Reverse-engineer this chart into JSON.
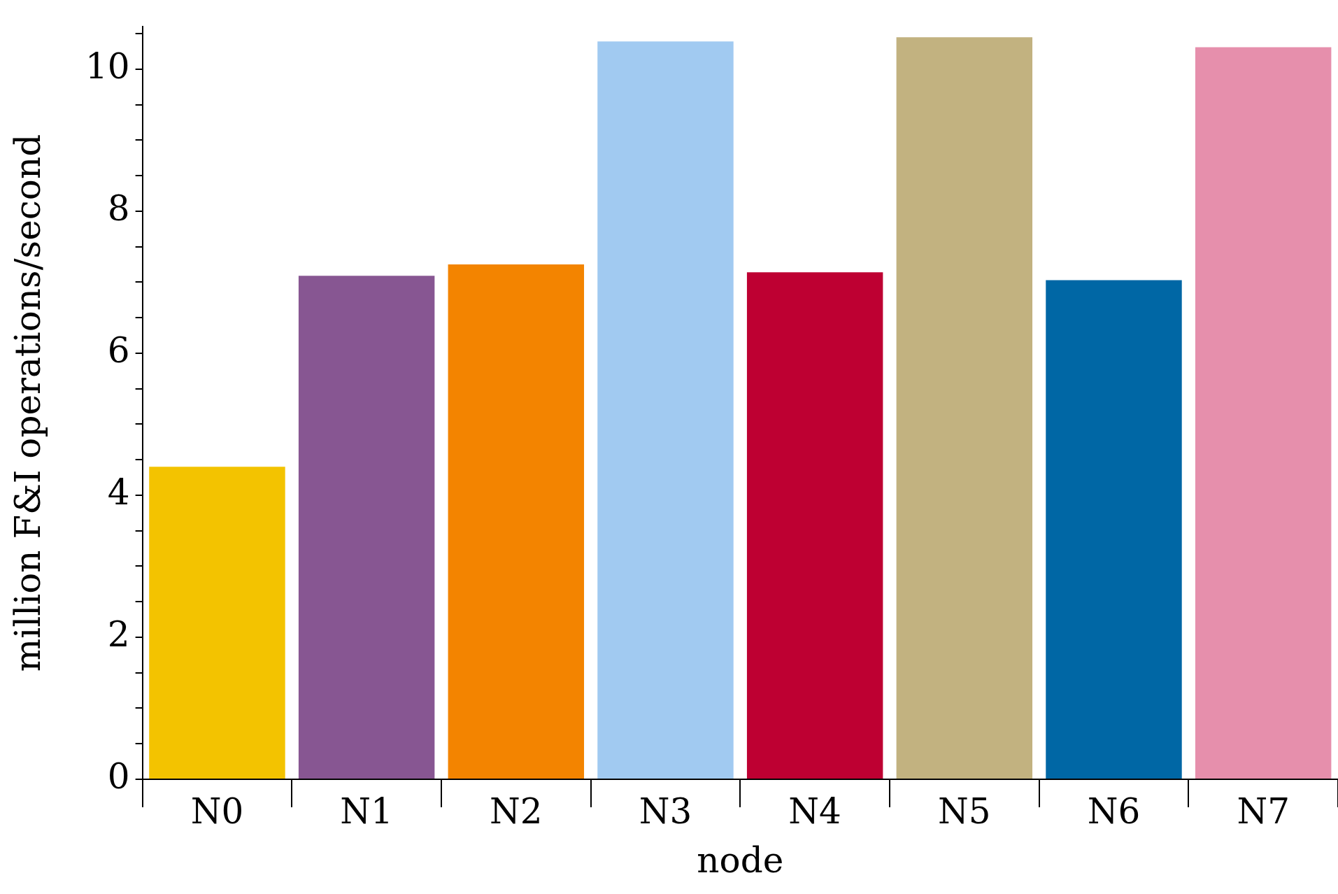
{
  "chart_data": {
    "type": "bar",
    "xlabel": "node",
    "ylabel": "million F&I operations/second",
    "categories": [
      "N0",
      "N1",
      "N2",
      "N3",
      "N4",
      "N5",
      "N6",
      "N7"
    ],
    "values": [
      4.4,
      7.09,
      7.25,
      10.39,
      7.14,
      10.45,
      7.03,
      10.31
    ],
    "colors": [
      "#f3c300",
      "#875692",
      "#f38400",
      "#a1caf1",
      "#be0032",
      "#c2b280",
      "#0067a5",
      "#e68fac"
    ],
    "ylim": [
      0,
      10.6
    ],
    "yticks": [
      0,
      {
        "value": 0.5,
        "label": null
      },
      2,
      {
        "value": 1,
        "label": null
      },
      {
        "value": 1.5,
        "label": null
      },
      {
        "value": 2.5,
        "label": null
      },
      {
        "value": 3,
        "label": null
      },
      {
        "value": 3.5,
        "label": null
      },
      4,
      {
        "value": 4.5,
        "label": null
      },
      {
        "value": 5,
        "label": null
      },
      {
        "value": 5.5,
        "label": null
      },
      6,
      {
        "value": 6.5,
        "label": null
      },
      {
        "value": 7,
        "label": null
      },
      {
        "value": 7.5,
        "label": null
      },
      8,
      {
        "value": 8.5,
        "label": null
      },
      {
        "value": 9,
        "label": null
      },
      {
        "value": 9.5,
        "label": null
      },
      10,
      {
        "value": 10.5,
        "label": null
      }
    ],
    "grid": false,
    "legend": false
  }
}
